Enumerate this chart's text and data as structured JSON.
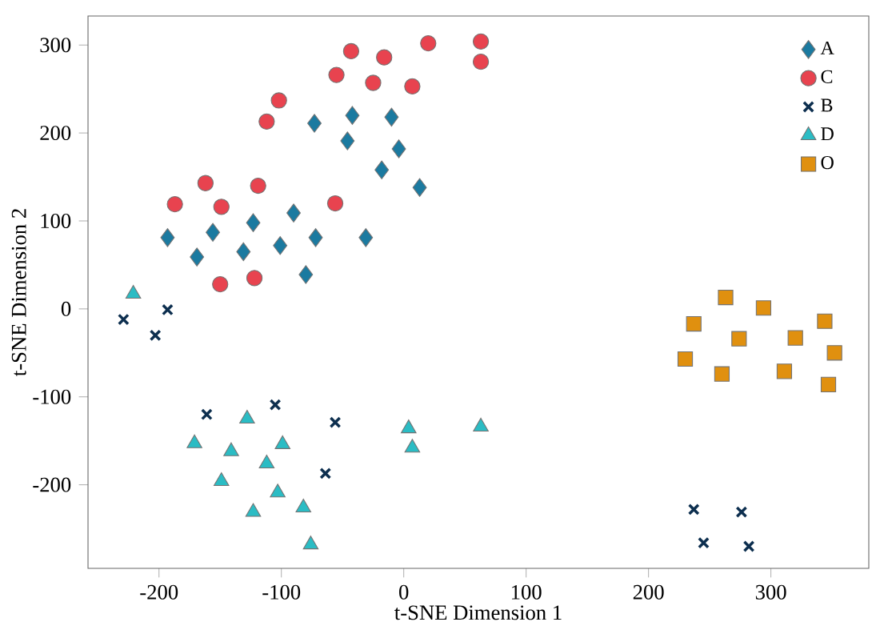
{
  "chart_data": {
    "type": "scatter",
    "xlabel": "t-SNE Dimension 1",
    "ylabel": "t-SNE Dimension 2",
    "xlim": [
      -258,
      380
    ],
    "ylim": [
      -295,
      333
    ],
    "xticks": [
      -200,
      -100,
      0,
      100,
      200,
      300
    ],
    "yticks": [
      -200,
      -100,
      0,
      100,
      200,
      300
    ],
    "grid": false,
    "legend": "top right",
    "series": [
      {
        "name": "A",
        "color": "#1b7aa0",
        "marker": "diamond",
        "x": [
          -193,
          -169,
          -156,
          -131,
          -123,
          -101,
          -90,
          -72,
          -80,
          -31,
          -73,
          -42,
          -46,
          -10,
          -4,
          -18,
          13
        ],
        "values": [
          81,
          59,
          87,
          65,
          98,
          72,
          109,
          81,
          39,
          81,
          211,
          220,
          191,
          218,
          182,
          158,
          138
        ]
      },
      {
        "name": "C",
        "color": "#e8434f",
        "marker": "circle",
        "x": [
          -187,
          -162,
          -149,
          -150,
          -119,
          -122,
          -112,
          -102,
          -56,
          -55,
          -43,
          -25,
          -16,
          7,
          20,
          63,
          63
        ],
        "values": [
          119,
          143,
          116,
          28,
          140,
          35,
          213,
          237,
          120,
          266,
          293,
          257,
          286,
          253,
          302,
          304,
          281
        ]
      },
      {
        "name": "B",
        "color": "#0d2f4f",
        "marker": "cross",
        "x": [
          -229,
          -193,
          -203,
          -161,
          -105,
          -56,
          -64,
          237,
          276,
          245,
          282
        ],
        "values": [
          -12,
          -1,
          -30,
          -120,
          -109,
          -129,
          -187,
          -228,
          -231,
          -266,
          -270
        ]
      },
      {
        "name": "D",
        "color": "#2bbcc4",
        "marker": "triangle",
        "x": [
          -221,
          -171,
          -128,
          -141,
          -99,
          -112,
          -149,
          -103,
          -82,
          -123,
          -76,
          4,
          7,
          63
        ],
        "values": [
          17,
          -153,
          -125,
          -162,
          -154,
          -176,
          -196,
          -209,
          -226,
          -231,
          -268,
          -136,
          -158,
          -134
        ]
      },
      {
        "name": "O",
        "color": "#e0900f",
        "marker": "square",
        "x": [
          263,
          294,
          237,
          274,
          320,
          344,
          352,
          230,
          260,
          311,
          347
        ],
        "values": [
          13,
          1,
          -17,
          -34,
          -33,
          -14,
          -50,
          -57,
          -74,
          -71,
          -86
        ]
      }
    ]
  }
}
